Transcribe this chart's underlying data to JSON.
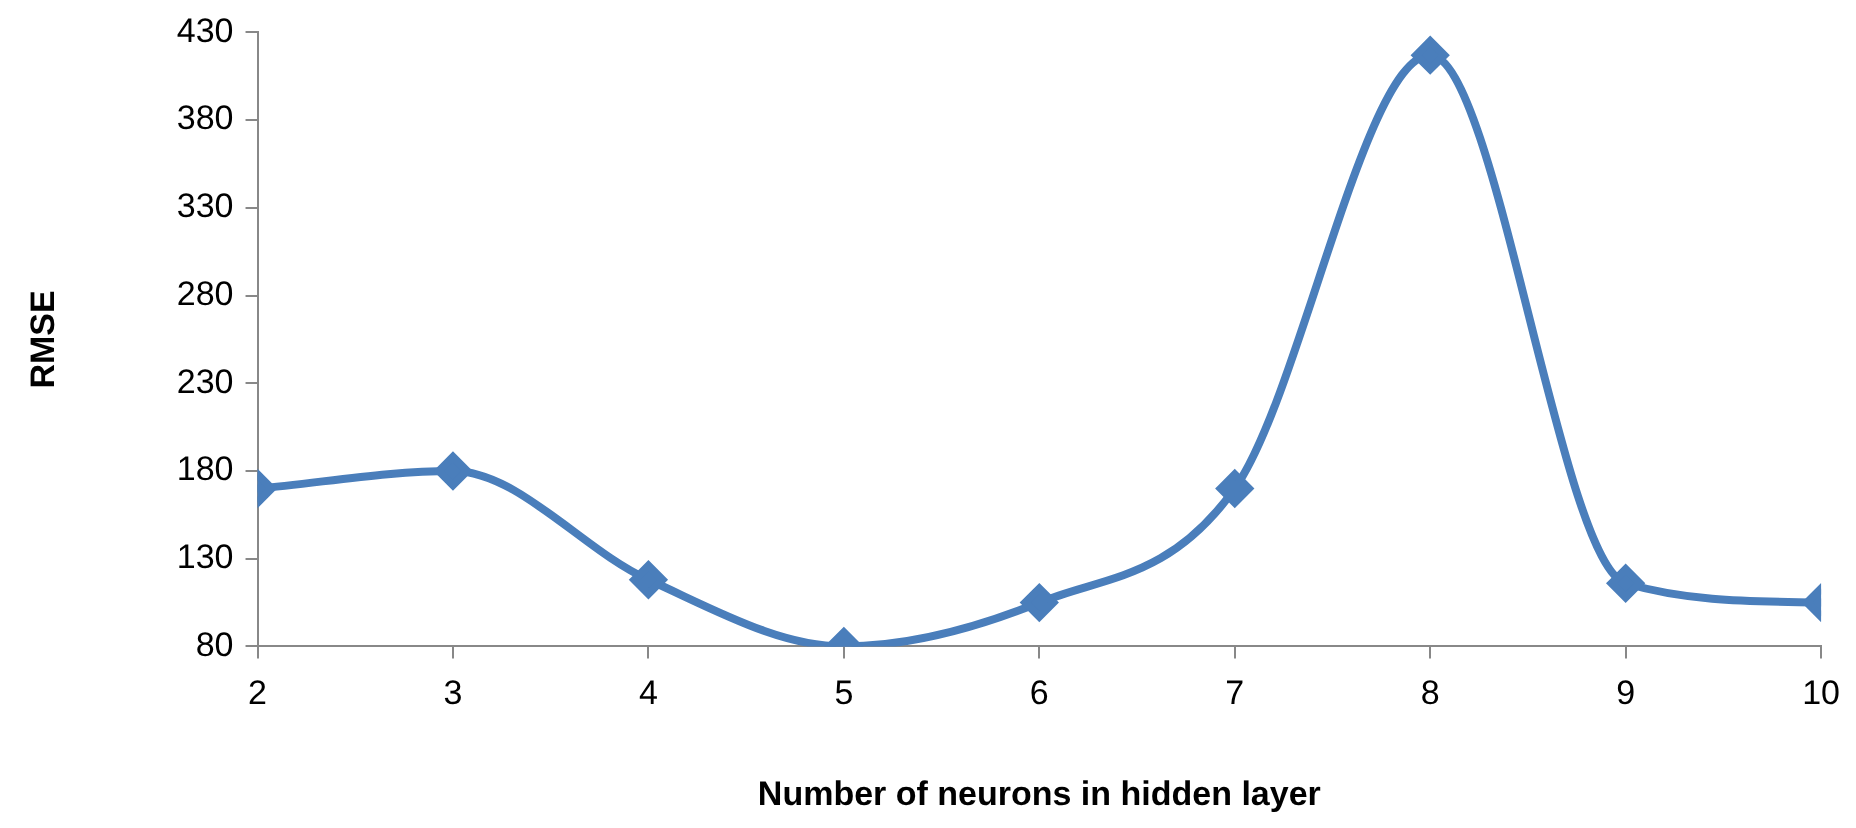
{
  "chart_data": {
    "type": "line",
    "xlabel": "Number of neurons in hidden layer",
    "ylabel": "RMSE",
    "x": [
      2,
      3,
      4,
      5,
      6,
      7,
      8,
      9,
      10
    ],
    "series": [
      {
        "color": "#4a7ebb",
        "values": [
          170,
          180,
          118,
          80,
          105,
          170,
          417,
          116,
          105
        ]
      }
    ],
    "xlim": [
      2,
      10
    ],
    "xticks": [
      2,
      3,
      4,
      5,
      6,
      7,
      8,
      9,
      10
    ],
    "ylim": [
      80,
      430
    ],
    "yticks": [
      80,
      130,
      180,
      230,
      280,
      330,
      380,
      430
    ],
    "grid": false,
    "legend": false,
    "marker": "diamond",
    "line_style": "solid"
  }
}
